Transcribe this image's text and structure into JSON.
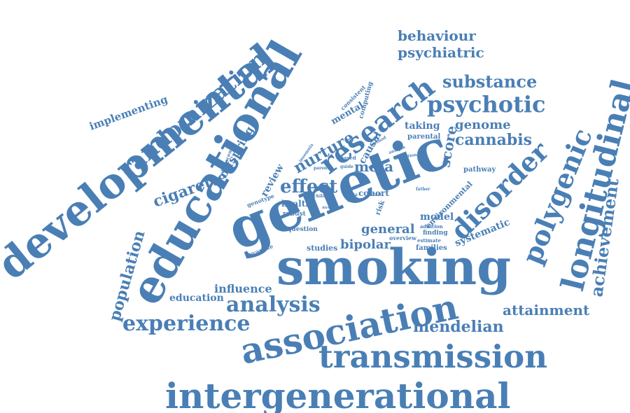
{
  "colors": {
    "word": "#4a7fb5",
    "background": "#ffffff"
  },
  "words": [
    "developmental",
    "educational",
    "genetic",
    "smoking",
    "research",
    "association",
    "intergenerational",
    "transmission",
    "longitudinal",
    "disorder",
    "polygenic",
    "randomization",
    "psychotic",
    "experience",
    "analysis",
    "achievement",
    "behaviour",
    "psychiatric",
    "substance",
    "cannabis",
    "genome",
    "attainment",
    "mendelian",
    "population",
    "cigarette",
    "effect",
    "nurture",
    "meta",
    "general",
    "bipolar",
    "score",
    "offspring",
    "influence",
    "education",
    "model",
    "systematic",
    "implementing",
    "review",
    "taking",
    "mental",
    "health",
    "causal",
    "cohort",
    "studies",
    "families",
    "environmental",
    "pathway",
    "computing",
    "consistent",
    "parental",
    "adolescent",
    "genotype",
    "robust",
    "question",
    "covariate",
    "insomnia",
    "based",
    "method",
    "initiation",
    "guide",
    "parent",
    "child",
    "data",
    "role",
    "trait",
    "direct",
    "risk",
    "finding",
    "overview",
    "estimate",
    "addition",
    "father",
    "analyse"
  ]
}
